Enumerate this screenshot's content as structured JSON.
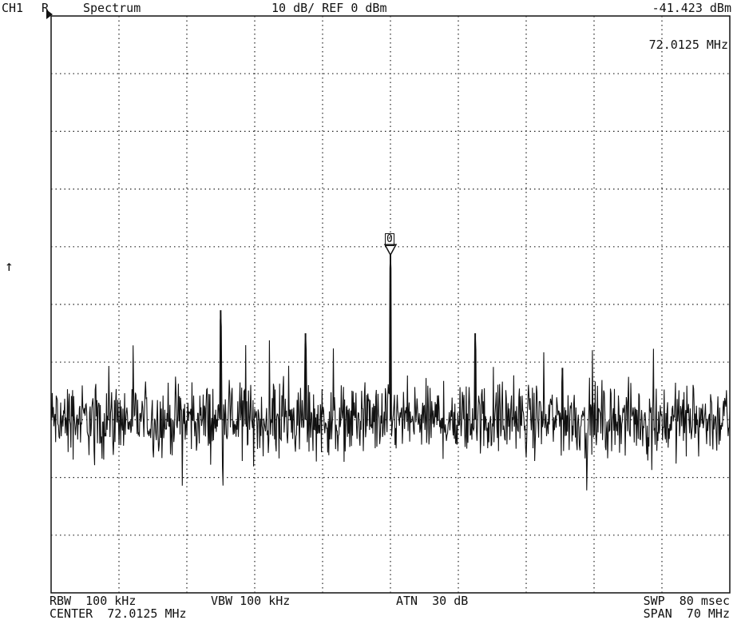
{
  "header": {
    "channel": "CH1",
    "trace": "R",
    "mode": "Spectrum",
    "scale": "10 dB/ REF 0 dBm",
    "marker_level": "-41.423 dBm",
    "marker_freq": "72.0125 MHz"
  },
  "side_arrow": "↑",
  "marker_label": "0",
  "footer": {
    "rbw": "RBW  100 kHz",
    "vbw": "VBW 100 kHz",
    "atn": "ATN  30 dB",
    "swp": "SWP  80 msec",
    "center": "CENTER  72.0125 MHz",
    "span": "SPAN  70 MHz"
  },
  "chart_data": {
    "type": "line",
    "ref_level_dbm": 0,
    "db_per_div": 10,
    "ylim": [
      -100,
      0
    ],
    "center_mhz": 72.0125,
    "span_mhz": 70,
    "xlim": [
      37.0125,
      107.0125
    ],
    "grid": true,
    "noise_floor_dbm": -70,
    "peaks": [
      {
        "freq_mhz": 54.5,
        "level_dbm": -51
      },
      {
        "freq_mhz": 63.25,
        "level_dbm": -55
      },
      {
        "freq_mhz": 72.0125,
        "level_dbm": -41.423
      },
      {
        "freq_mhz": 80.75,
        "level_dbm": -55
      },
      {
        "freq_mhz": 89.75,
        "level_dbm": -61
      }
    ],
    "marker": {
      "label": "0",
      "freq_mhz": 72.0125,
      "level_dbm": -41.423
    }
  }
}
